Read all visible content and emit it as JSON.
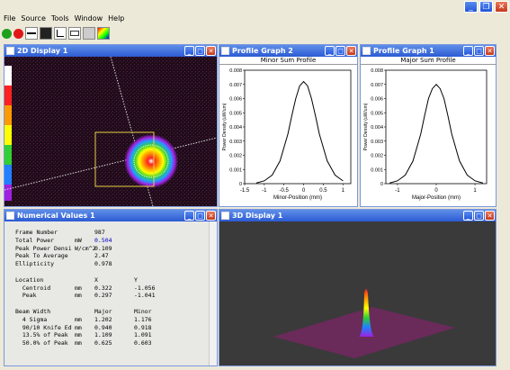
{
  "menu": [
    "File",
    "Source",
    "Tools",
    "Window",
    "Help"
  ],
  "toolbar": [
    "start-icon",
    "stop-icon",
    "profile-icon",
    "display2d-icon",
    "display3d-icon",
    "compare-icon",
    "save-icon",
    "color-icon"
  ],
  "display2d": {
    "title": "2D Display 1"
  },
  "profile2": {
    "title": "Profile Graph 2",
    "plot_title": "Minor Sum Profile",
    "xlabel": "Minor-Position (mm)",
    "ylabel": "Power Density (uW/um)"
  },
  "profile1": {
    "title": "Profile Graph 1",
    "plot_title": "Major Sum Profile",
    "xlabel": "Major-Position (mm)",
    "ylabel": "Power Density (uW/um)"
  },
  "numerical": {
    "title": "Numerical Values 1",
    "rows": [
      [
        "Frame Number",
        "",
        "987",
        ""
      ],
      [
        "Total Power",
        "mW",
        "0.504",
        ""
      ],
      [
        "Peak Power Densi",
        "W/cm^2",
        "0.109",
        ""
      ],
      [
        "Peak To Average",
        "",
        "2.47",
        ""
      ],
      [
        "Ellipticity",
        "",
        "0.978",
        ""
      ],
      [
        "",
        "",
        "",
        ""
      ],
      [
        "Location",
        "",
        "X",
        "Y"
      ],
      [
        "  Centroid",
        "mm",
        "0.322",
        "-1.056"
      ],
      [
        "  Peak",
        "mm",
        "0.297",
        "-1.041"
      ],
      [
        "",
        "",
        "",
        ""
      ],
      [
        "Beam Width",
        "",
        "Major",
        "Minor"
      ],
      [
        "  4 Sigma",
        "mm",
        "1.202",
        "1.176"
      ],
      [
        "  90/10 Knife Ed",
        "mm",
        "0.940",
        "0.918"
      ],
      [
        "  13.5% of Peak",
        "mm",
        "1.109",
        "1.091"
      ],
      [
        "  50.0% of Peak",
        "mm",
        "0.625",
        "0.603"
      ]
    ]
  },
  "display3d": {
    "title": "3D Display 1"
  },
  "chart_data": [
    {
      "type": "line",
      "title": "Minor Sum Profile",
      "xlabel": "Minor-Position (mm)",
      "ylabel": "Power Density (uW/um)",
      "xticks": [
        "-1.5",
        "-1",
        "-0.5",
        "0",
        "0.5",
        "1"
      ],
      "yticks": [
        "0",
        "0.001",
        "0.002",
        "0.003",
        "0.004",
        "0.005",
        "0.006",
        "0.007",
        "0.008"
      ],
      "xlim": [
        -1.5,
        1.2
      ],
      "ylim": [
        0,
        0.008
      ],
      "x": [
        -1.2,
        -1.0,
        -0.8,
        -0.6,
        -0.4,
        -0.3,
        -0.2,
        -0.1,
        0,
        0.1,
        0.2,
        0.3,
        0.4,
        0.6,
        0.8,
        1.0
      ],
      "y": [
        5e-05,
        0.0002,
        0.0006,
        0.0016,
        0.0035,
        0.0048,
        0.006,
        0.0069,
        0.0072,
        0.0069,
        0.006,
        0.0048,
        0.0035,
        0.0016,
        0.0006,
        0.0002
      ]
    },
    {
      "type": "line",
      "title": "Major Sum Profile",
      "xlabel": "Major-Position (mm)",
      "ylabel": "Power Density (uW/um)",
      "xticks": [
        "-1",
        "0",
        "1"
      ],
      "yticks": [
        "0",
        "0.001",
        "0.002",
        "0.003",
        "0.004",
        "0.005",
        "0.006",
        "0.007",
        "0.008"
      ],
      "xlim": [
        -1.3,
        1.3
      ],
      "ylim": [
        0,
        0.008
      ],
      "x": [
        -1.2,
        -1.0,
        -0.8,
        -0.6,
        -0.4,
        -0.3,
        -0.2,
        -0.1,
        0,
        0.1,
        0.2,
        0.3,
        0.4,
        0.6,
        0.8,
        1.0,
        1.2
      ],
      "y": [
        5e-05,
        0.0002,
        0.0006,
        0.0016,
        0.0035,
        0.0048,
        0.006,
        0.0067,
        0.007,
        0.0067,
        0.006,
        0.0048,
        0.0035,
        0.0016,
        0.0006,
        0.0002,
        5e-05
      ]
    }
  ]
}
